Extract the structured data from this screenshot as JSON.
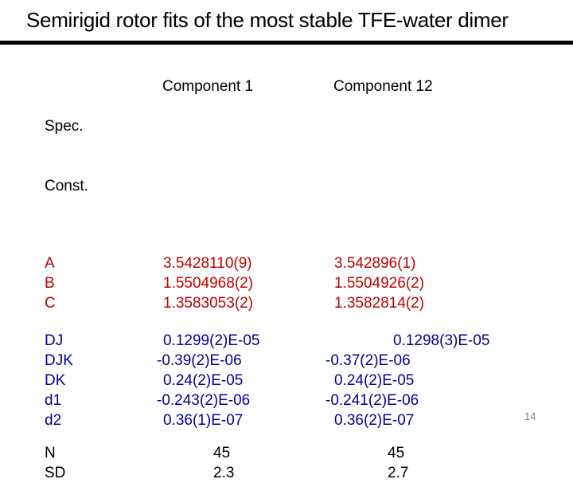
{
  "slide": {
    "title": "Semirigid rotor fits of the most stable TFE-water dimer",
    "page_number": "14"
  },
  "colors": {
    "rotational_constants_text": "#c00000",
    "distortion_constants_text": "#000099",
    "header_and_stats_text": "#000000",
    "page_number_text": "#808080",
    "title_rule": "#000000",
    "background": "#ffffff"
  },
  "table": {
    "header": {
      "label_line1": "Spec.",
      "label_line2": "Const.",
      "col1": "Component 1",
      "col2": "Component 12"
    },
    "rotational_constants": {
      "rows": [
        {
          "label": "A",
          "c1": "3.5428110(9)",
          "c2": "3.542896(1)"
        },
        {
          "label": "B",
          "c1": "1.5504968(2)",
          "c2": "1.5504926(2)"
        },
        {
          "label": "C",
          "c1": "1.3583053(2)",
          "c2": "1.3582814(2)"
        }
      ]
    },
    "distortion_constants": {
      "rows": [
        {
          "label": "DJ",
          "c1": "0.1299(2)E-05",
          "c2": "0.1298(3)E-05"
        },
        {
          "label": "DJK",
          "c1": "-0.39(2)E-06",
          "c2": "-0.37(2)E-06"
        },
        {
          "label": "DK",
          "c1": "0.24(2)E-05",
          "c2": "0.24(2)E-05"
        },
        {
          "label": "d1",
          "c1": "-0.243(2)E-06",
          "c2": "-0.241(2)E-06"
        },
        {
          "label": "d2",
          "c1": "0.36(1)E-07",
          "c2": "0.36(2)E-07"
        }
      ]
    },
    "fit_statistics": {
      "rows": [
        {
          "label": "N",
          "c1": "45",
          "c2": "45"
        },
        {
          "label": "SD",
          "c1": "2.3",
          "c2": "2.7"
        }
      ]
    }
  }
}
